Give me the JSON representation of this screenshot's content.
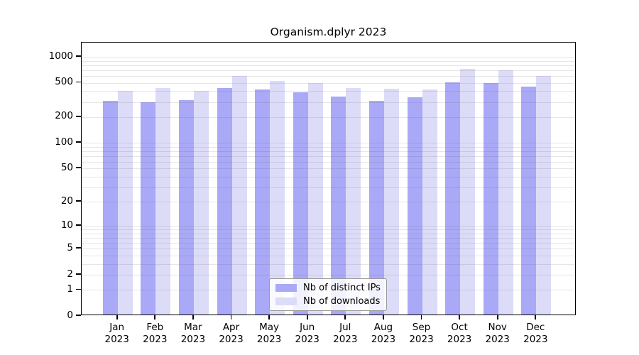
{
  "title": "Organism.dplyr 2023",
  "colors": {
    "ips_bar": "#a9a9f7",
    "downloads_bar": "#dcdcf8",
    "gridline": "rgba(80,80,80,0.14)",
    "axis": "#000000"
  },
  "legend": {
    "items": [
      {
        "label": "Nb of distinct IPs",
        "color_key": "ips_bar"
      },
      {
        "label": "Nb of downloads",
        "color_key": "downloads_bar"
      }
    ]
  },
  "chart_data": {
    "type": "bar",
    "title": "Organism.dplyr 2023",
    "y_scale": "log10(1+v)",
    "categories": [
      "Jan",
      "Feb",
      "Mar",
      "Apr",
      "May",
      "Jun",
      "Jul",
      "Aug",
      "Sep",
      "Oct",
      "Nov",
      "Dec"
    ],
    "year_label": "2023",
    "series": [
      {
        "name": "Nb of distinct IPs",
        "values": [
          300,
          285,
          305,
          420,
          405,
          375,
          335,
          300,
          325,
          485,
          480,
          435
        ]
      },
      {
        "name": "Nb of downloads",
        "values": [
          385,
          420,
          390,
          580,
          510,
          480,
          420,
          410,
          405,
          700,
          675,
          575
        ]
      }
    ],
    "y_ticks": [
      0,
      1,
      2,
      5,
      10,
      20,
      50,
      100,
      200,
      500,
      1000
    ],
    "y_minor_gridlines": [
      3,
      4,
      6,
      7,
      8,
      9,
      30,
      40,
      60,
      70,
      80,
      90,
      300,
      400,
      600,
      700,
      800,
      900
    ],
    "ylim": [
      0,
      1460
    ],
    "grid": "horizontal",
    "legend_position": "bottom-center-inside"
  }
}
